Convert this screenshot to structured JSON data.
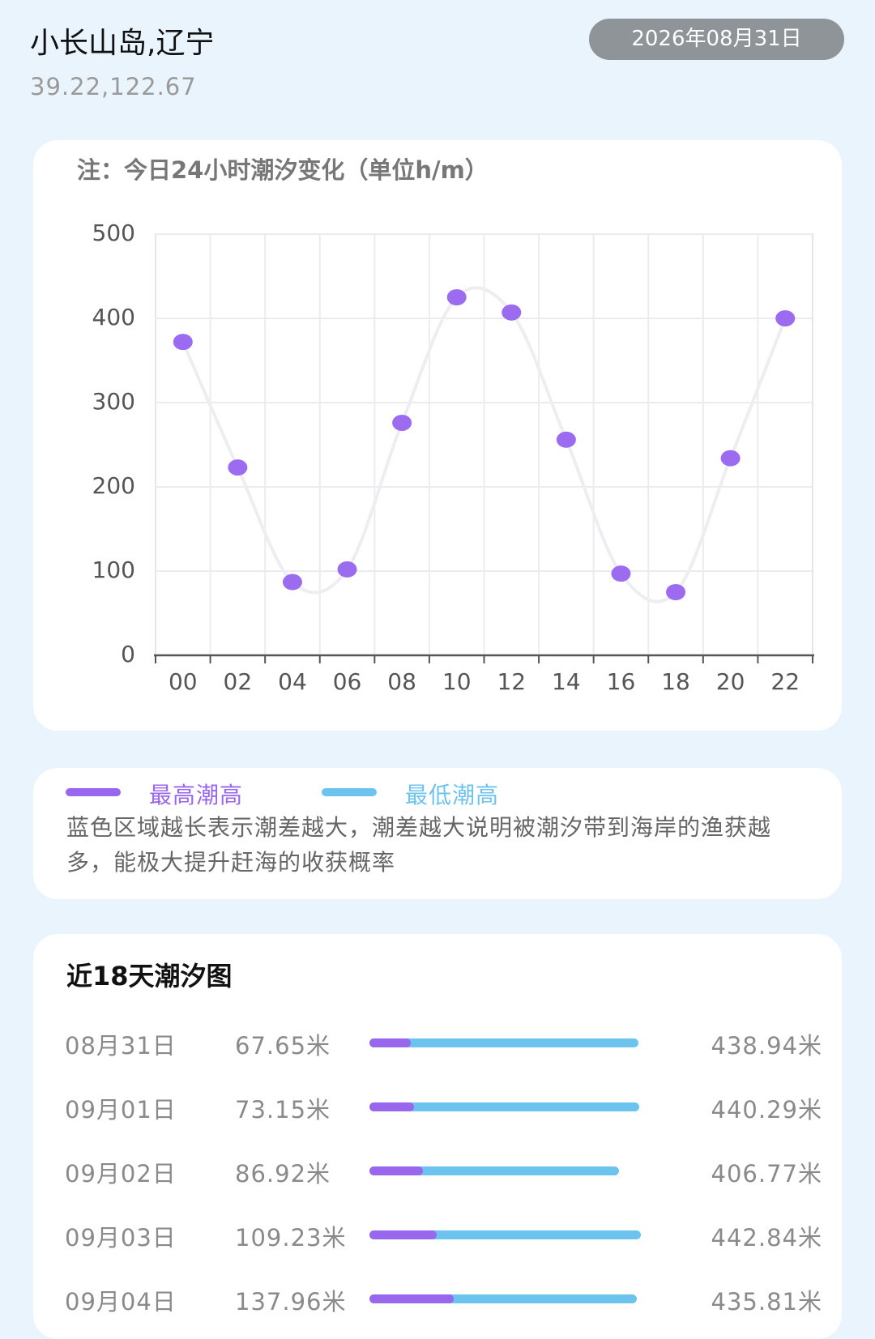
{
  "header": {
    "location": "小长山岛,辽宁",
    "coordinates": "39.22,122.67",
    "date": "2026年08月31日"
  },
  "chart_data": {
    "type": "line",
    "title": "注：今日24小时潮汐变化（单位h/m）",
    "categories": [
      "00",
      "02",
      "04",
      "06",
      "08",
      "10",
      "12",
      "14",
      "16",
      "18",
      "20",
      "22"
    ],
    "values": [
      372,
      223,
      87,
      102,
      276,
      425,
      407,
      256,
      97,
      75,
      234,
      400
    ],
    "color": "#9b6cf0",
    "line_color": "#eeeef2",
    "ylim": [
      0,
      500
    ],
    "yticks": [
      0,
      100,
      200,
      300,
      400,
      500
    ],
    "grid": true
  },
  "legend": {
    "items": [
      {
        "name": "最高潮高",
        "color": "#9966ee"
      },
      {
        "name": "最低潮高",
        "color": "#6cc4ee"
      }
    ],
    "note": "蓝色区域越长表示潮差越大，潮差越大说明被潮汐带到海岸的渔获越多，能极大提升赶海的收获概率"
  },
  "tide_list": {
    "title": "近18天潮汐图",
    "rows": [
      {
        "date": "08月31日",
        "low": {
          "value": 67.65,
          "label": "67.65米"
        },
        "high": {
          "value": 438.94,
          "label": "438.94米"
        }
      },
      {
        "date": "09月01日",
        "low": {
          "value": 73.15,
          "label": "73.15米"
        },
        "high": {
          "value": 440.29,
          "label": "440.29米"
        }
      },
      {
        "date": "09月02日",
        "low": {
          "value": 86.92,
          "label": "86.92米"
        },
        "high": {
          "value": 406.77,
          "label": "406.77米"
        }
      },
      {
        "date": "09月03日",
        "low": {
          "value": 109.23,
          "label": "109.23米"
        },
        "high": {
          "value": 442.84,
          "label": "442.84米"
        }
      },
      {
        "date": "09月04日",
        "low": {
          "value": 137.96,
          "label": "137.96米"
        },
        "high": {
          "value": 435.81,
          "label": "435.81米"
        }
      }
    ]
  }
}
